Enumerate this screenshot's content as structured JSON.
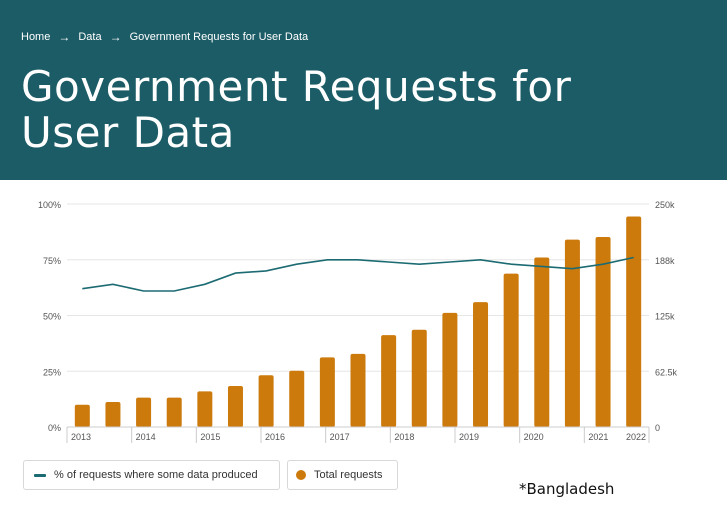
{
  "breadcrumb": {
    "home": "Home",
    "data": "Data",
    "current": "Government Requests for User Data"
  },
  "header": {
    "title_line1": "Government Requests for",
    "title_line2": "User Data"
  },
  "legend": {
    "line_label": "% of requests where some data produced",
    "bar_label": "Total requests"
  },
  "footnote": "*Bangladesh",
  "colors": {
    "header_bg": "#1c5c66",
    "bar": "#cc7a0c",
    "line": "#1c6b72"
  },
  "chart_data": {
    "type": "bar",
    "x_tick_labels": [
      "2013",
      "2014",
      "2015",
      "2016",
      "2017",
      "2018",
      "2019",
      "2020",
      "2021",
      "2022"
    ],
    "left_axis_labels": [
      "0%",
      "25%",
      "50%",
      "75%",
      "100%"
    ],
    "right_axis_labels": [
      "0",
      "62.5k",
      "125k",
      "188k",
      "250k"
    ],
    "ylim_left": [
      0,
      100
    ],
    "ylim_right": [
      0,
      250000
    ],
    "grid": true,
    "legend_position": "bottom-left",
    "series": [
      {
        "name": "Total requests",
        "type": "bar",
        "axis": "right",
        "values": [
          25000,
          28000,
          33000,
          33000,
          40000,
          46000,
          58000,
          63000,
          78000,
          82000,
          103000,
          109000,
          128000,
          140000,
          172000,
          190000,
          210000,
          213000,
          236000
        ]
      },
      {
        "name": "% of requests where some data produced",
        "type": "line",
        "axis": "left",
        "values": [
          62,
          64,
          61,
          61,
          64,
          69,
          70,
          73,
          75,
          75,
          74,
          73,
          74,
          75,
          73,
          72,
          71,
          73,
          76
        ]
      }
    ]
  }
}
